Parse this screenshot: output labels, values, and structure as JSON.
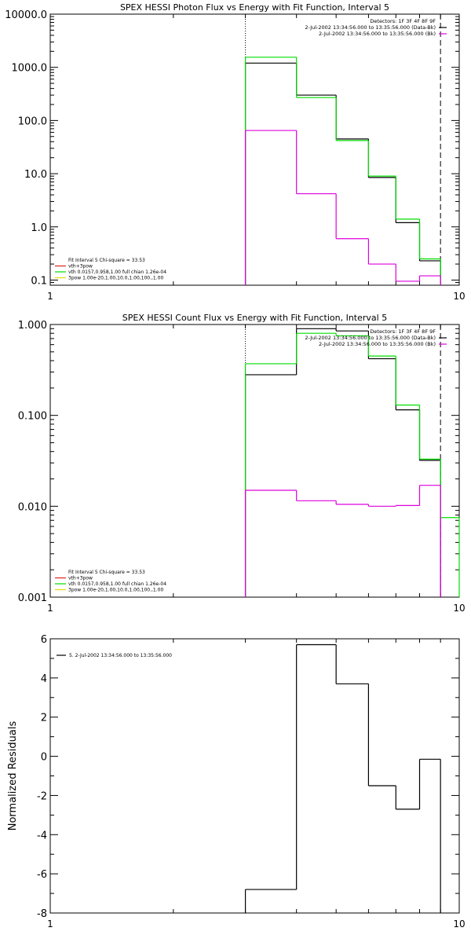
{
  "chart_data": [
    {
      "type": "line",
      "step": true,
      "title": "SPEX HESSI Photon Flux vs Energy with Fit Function, Interval 5",
      "xlabel": "",
      "ylabel": "",
      "xscale": "log",
      "yscale": "log",
      "xlim": [
        1,
        10
      ],
      "ylim": [
        0.08,
        10000
      ],
      "xticks": [
        1,
        10
      ],
      "xticklabels": [
        "1",
        "10"
      ],
      "yticks": [
        0.1,
        1,
        10,
        100,
        1000,
        10000
      ],
      "yticklabels": [
        "0.1",
        "1.0",
        "10.0",
        "100.0",
        "1000.0",
        "10000.0"
      ],
      "vlines": [
        {
          "x": 3.0,
          "style": "dotted"
        },
        {
          "x": 9.0,
          "style": "dashed"
        }
      ],
      "legend_tr": [
        "Detectors: 1F 3F 4F 8F 9F",
        "2-Jul-2002 13:34:56.000 to 13:35:56.000 (Data-Bk)",
        "2-Jul-2002 13:34:56.000 to 13:35:56.000 (Bk)"
      ],
      "legend_bl": [
        "Fit Interval  5   Chi-square = 33.53",
        "vth+3pow",
        "vth  0.0157,0.958,1.00  full chian 1.26e-04",
        "3pow  1.00e-20,1.00,10.0,1.00,100.,1.00"
      ],
      "bin_edges": [
        3.0,
        4.0,
        5.0,
        6.0,
        7.0,
        8.0,
        9.0
      ],
      "series": [
        {
          "values": [
            1200,
            300,
            45,
            8.5,
            1.2,
            0.23
          ],
          "color": "#000000"
        },
        {
          "values": [
            1550,
            270,
            42,
            9.0,
            1.4,
            0.25
          ],
          "color": "#00dd00"
        },
        {
          "values": [
            65,
            4.2,
            0.6,
            0.2,
            0.095,
            0.12
          ],
          "color": "#dd00dd"
        }
      ]
    },
    {
      "type": "line",
      "step": true,
      "title": "SPEX HESSI Count Flux vs Energy with Fit Function, Interval 5",
      "xlabel": "",
      "ylabel": "",
      "xscale": "log",
      "yscale": "log",
      "xlim": [
        1,
        10
      ],
      "ylim": [
        0.001,
        1.0
      ],
      "xticks": [
        1,
        10
      ],
      "xticklabels": [
        "1",
        "10"
      ],
      "yticks": [
        0.001,
        0.01,
        0.1,
        1.0
      ],
      "yticklabels": [
        "0.001",
        "0.010",
        "0.100",
        "1.000"
      ],
      "vlines": [
        {
          "x": 3.0,
          "style": "dotted"
        },
        {
          "x": 9.0,
          "style": "dashed"
        }
      ],
      "legend_tr": [
        "Detectors: 1F 3F 4F 8F 9F",
        "2-Jul-2002 13:34:56.000 to 13:35:56.000 (Data-Bk)",
        "2-Jul-2002 13:34:56.000 to 13:35:56.000 (Bk)"
      ],
      "legend_bl": [
        "Fit Interval  5   Chi-square = 33.53",
        "vth+3pow",
        "vth  0.0157,0.958,1.00  full chian 1.26e-04",
        "3pow  1.00e-20,1.00,10.0,1.00,100.,1.00"
      ],
      "bin_edges": [
        3.0,
        4.0,
        5.0,
        6.0,
        7.0,
        8.0,
        9.0,
        10.0
      ],
      "series": [
        {
          "values": [
            0.28,
            0.9,
            0.85,
            0.42,
            0.115,
            0.032,
            null
          ],
          "color": "#000000"
        },
        {
          "values": [
            0.37,
            0.8,
            0.75,
            0.45,
            0.13,
            0.033,
            0.0075
          ],
          "color": "#00dd00"
        },
        {
          "values": [
            0.015,
            0.0115,
            0.0105,
            0.01,
            0.0102,
            0.017,
            null
          ],
          "color": "#dd00dd"
        }
      ]
    },
    {
      "type": "line",
      "step": true,
      "title": "",
      "xlabel": "",
      "ylabel": "Normalized Residuals",
      "xscale": "log",
      "yscale": "linear",
      "xlim": [
        1,
        10
      ],
      "ylim": [
        -8,
        6
      ],
      "xticks": [
        1,
        10
      ],
      "xticklabels": [
        "1",
        "10"
      ],
      "yticks": [
        6,
        4,
        2,
        0,
        -2,
        -4,
        -6,
        -8
      ],
      "yticklabels": [
        "6",
        "4",
        "2",
        "0",
        "-2",
        "-4",
        "-6",
        "-8"
      ],
      "legend_tl": [
        "5.  2-Jul-2002 13:34:56.000 to 13:35:56.000"
      ],
      "bin_edges": [
        3.0,
        4.0,
        5.0,
        6.0,
        7.0,
        8.0,
        9.0
      ],
      "series": [
        {
          "values": [
            -6.8,
            5.7,
            3.7,
            -1.5,
            -2.7,
            -0.15
          ],
          "color": "#000000"
        }
      ]
    }
  ]
}
